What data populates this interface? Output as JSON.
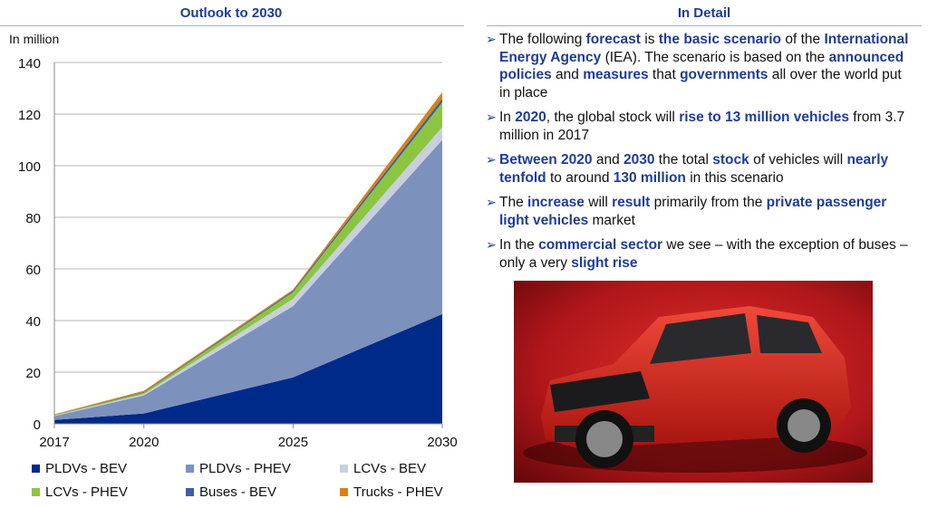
{
  "left_title": "Outlook to 2030",
  "right_title": "In Detail",
  "chart_data": {
    "type": "area",
    "stacked": true,
    "ylabel": "In million",
    "ylim": [
      0,
      140
    ],
    "yticks": [
      0,
      20,
      40,
      60,
      80,
      100,
      120,
      140
    ],
    "x": [
      "2017",
      "2020",
      "2025",
      "2030"
    ],
    "x_values": [
      2017,
      2020,
      2025,
      2030
    ],
    "grid": true,
    "legend_position": "bottom",
    "series": [
      {
        "name": "PLDVs - BEV",
        "color": "#002a8a",
        "values": [
          1.5,
          4,
          18,
          42.5
        ]
      },
      {
        "name": "PLDVs - PHEV",
        "color": "#7d91bd",
        "values": [
          1.5,
          7,
          27.6,
          67.5
        ]
      },
      {
        "name": "LCVs - BEV",
        "color": "#c8cfdf",
        "values": [
          0.2,
          0.5,
          2.8,
          5
        ]
      },
      {
        "name": "LCVs - PHEV",
        "color": "#8cc540",
        "values": [
          0.2,
          0.5,
          2.6,
          9.5
        ]
      },
      {
        "name": "Buses - BEV",
        "color": "#3c5fa8",
        "values": [
          0.1,
          0.3,
          0.5,
          1.5
        ]
      },
      {
        "name": "Trucks - PHEV",
        "color": "#d9820f",
        "values": [
          0.2,
          0.5,
          0.5,
          2.5
        ]
      }
    ]
  },
  "bullets": [
    [
      {
        "t": "The following "
      },
      {
        "t": "forecast",
        "b": true
      },
      {
        "t": " is "
      },
      {
        "t": "the basic scenario",
        "b": true
      },
      {
        "t": " of the "
      },
      {
        "t": "International Energy Agency",
        "b": true
      },
      {
        "t": " (IEA). The scenario is based on the "
      },
      {
        "t": "announced policies",
        "b": true
      },
      {
        "t": " and "
      },
      {
        "t": "measures",
        "b": true
      },
      {
        "t": " that "
      },
      {
        "t": "governments",
        "b": true
      },
      {
        "t": " all over the world put in place"
      }
    ],
    [
      {
        "t": "In "
      },
      {
        "t": "2020",
        "b": true
      },
      {
        "t": ", the global stock will "
      },
      {
        "t": "rise to 13 million vehicles",
        "b": true
      },
      {
        "t": " from 3.7 million in 2017"
      }
    ],
    [
      {
        "t": "Between 2020",
        "b": true
      },
      {
        "t": " and "
      },
      {
        "t": "2030",
        "b": true
      },
      {
        "t": " the total "
      },
      {
        "t": "stock",
        "b": true
      },
      {
        "t": " of vehicles will "
      },
      {
        "t": "nearly tenfold",
        "b": true
      },
      {
        "t": " to around "
      },
      {
        "t": "130 million",
        "b": true
      },
      {
        "t": " in this scenario"
      }
    ],
    [
      {
        "t": "The "
      },
      {
        "t": "increase",
        "b": true
      },
      {
        "t": " will "
      },
      {
        "t": "result",
        "b": true
      },
      {
        "t": " primarily from the "
      },
      {
        "t": "private passenger light vehicles",
        "b": true
      },
      {
        "t": " market"
      }
    ],
    [
      {
        "t": " In the "
      },
      {
        "t": "commercial sector",
        "b": true
      },
      {
        "t": " we see – with the exception of buses – only a very "
      },
      {
        "t": "slight rise",
        "b": true
      }
    ]
  ],
  "bullet_icon": "arrowhead-icon"
}
